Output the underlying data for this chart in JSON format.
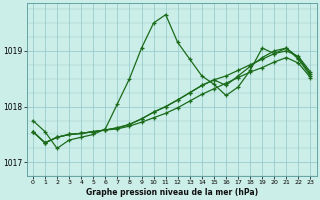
{
  "title": "Graphe pression niveau de la mer (hPa)",
  "bg_color": "#cceee8",
  "grid_color": "#99cccc",
  "line_color": "#1a6b1a",
  "xlim": [
    -0.5,
    23.5
  ],
  "ylim": [
    1016.75,
    1019.85
  ],
  "yticks": [
    1017,
    1018,
    1019
  ],
  "xticks": [
    0,
    1,
    2,
    3,
    4,
    5,
    6,
    7,
    8,
    9,
    10,
    11,
    12,
    13,
    14,
    15,
    16,
    17,
    18,
    19,
    20,
    21,
    22,
    23
  ],
  "line1": [
    1017.75,
    1017.55,
    1017.25,
    1017.4,
    1017.45,
    1017.5,
    1017.6,
    1018.05,
    1018.5,
    1019.05,
    1019.5,
    1019.65,
    1019.15,
    1018.85,
    1018.55,
    1018.4,
    1018.2,
    1018.35,
    1018.65,
    1019.05,
    1018.95,
    1019.05,
    1018.85,
    1018.55
  ],
  "line2": [
    1017.55,
    1017.35,
    1017.45,
    1017.5,
    1017.52,
    1017.55,
    1017.58,
    1017.6,
    1017.65,
    1017.72,
    1017.8,
    1017.88,
    1017.98,
    1018.1,
    1018.22,
    1018.32,
    1018.42,
    1018.52,
    1018.62,
    1018.7,
    1018.8,
    1018.88,
    1018.78,
    1018.52
  ],
  "line3": [
    1017.55,
    1017.35,
    1017.45,
    1017.5,
    1017.52,
    1017.55,
    1017.58,
    1017.62,
    1017.68,
    1017.78,
    1017.9,
    1018.0,
    1018.12,
    1018.25,
    1018.38,
    1018.48,
    1018.55,
    1018.65,
    1018.75,
    1018.85,
    1018.95,
    1019.0,
    1018.9,
    1018.62
  ],
  "line4": [
    1017.55,
    1017.35,
    1017.45,
    1017.5,
    1017.52,
    1017.55,
    1017.58,
    1017.62,
    1017.68,
    1017.78,
    1017.9,
    1018.0,
    1018.12,
    1018.25,
    1018.38,
    1018.48,
    1018.38,
    1018.55,
    1018.72,
    1018.88,
    1019.0,
    1019.05,
    1018.88,
    1018.58
  ]
}
